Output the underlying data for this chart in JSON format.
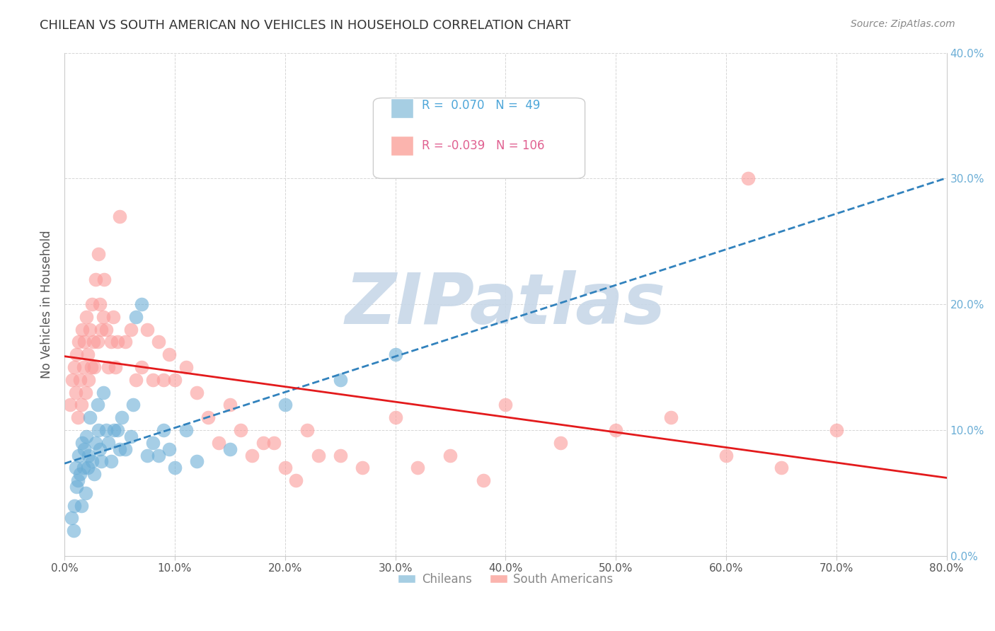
{
  "title": "CHILEAN VS SOUTH AMERICAN NO VEHICLES IN HOUSEHOLD CORRELATION CHART",
  "source": "Source: ZipAtlas.com",
  "ylabel": "No Vehicles in Household",
  "xlabel": "",
  "xlim": [
    0.0,
    0.8
  ],
  "ylim": [
    0.0,
    0.4
  ],
  "xticks": [
    0.0,
    0.1,
    0.2,
    0.3,
    0.4,
    0.5,
    0.6,
    0.7,
    0.8
  ],
  "yticks": [
    0.0,
    0.1,
    0.2,
    0.3,
    0.4
  ],
  "xticklabels": [
    "0.0%",
    "10.0%",
    "20.0%",
    "30.0%",
    "40.0%",
    "50.0%",
    "60.0%",
    "70.0%",
    "80.0%"
  ],
  "yticklabels_right": [
    "0.0%",
    "10.0%",
    "20.0%",
    "30.0%",
    "40.0%"
  ],
  "chilean_R": 0.07,
  "chilean_N": 49,
  "south_american_R": -0.039,
  "south_american_N": 106,
  "blue_color": "#6baed6",
  "pink_color": "#fb9a99",
  "blue_line_color": "#3182bd",
  "pink_line_color": "#e31a1c",
  "watermark": "ZIPatlas",
  "watermark_color": "#c8d8e8",
  "legend_box_blue": "#a6cee3",
  "legend_box_pink": "#fbb4ae",
  "chileans_label": "Chileans",
  "south_americans_label": "South Americans",
  "chilean_x": [
    0.006,
    0.008,
    0.009,
    0.01,
    0.011,
    0.012,
    0.013,
    0.014,
    0.015,
    0.016,
    0.017,
    0.018,
    0.019,
    0.02,
    0.021,
    0.022,
    0.023,
    0.025,
    0.027,
    0.028,
    0.03,
    0.031,
    0.032,
    0.033,
    0.035,
    0.038,
    0.04,
    0.042,
    0.045,
    0.048,
    0.05,
    0.052,
    0.055,
    0.06,
    0.062,
    0.065,
    0.07,
    0.075,
    0.08,
    0.085,
    0.09,
    0.095,
    0.1,
    0.11,
    0.12,
    0.15,
    0.2,
    0.25,
    0.3
  ],
  "chilean_y": [
    0.03,
    0.02,
    0.04,
    0.07,
    0.055,
    0.06,
    0.08,
    0.065,
    0.04,
    0.09,
    0.07,
    0.085,
    0.05,
    0.095,
    0.07,
    0.08,
    0.11,
    0.075,
    0.065,
    0.09,
    0.12,
    0.1,
    0.085,
    0.075,
    0.13,
    0.1,
    0.09,
    0.075,
    0.1,
    0.1,
    0.085,
    0.11,
    0.085,
    0.095,
    0.12,
    0.19,
    0.2,
    0.08,
    0.09,
    0.08,
    0.1,
    0.085,
    0.07,
    0.1,
    0.075,
    0.085,
    0.12,
    0.14,
    0.16
  ],
  "south_american_x": [
    0.005,
    0.007,
    0.009,
    0.01,
    0.011,
    0.012,
    0.013,
    0.014,
    0.015,
    0.016,
    0.017,
    0.018,
    0.019,
    0.02,
    0.021,
    0.022,
    0.023,
    0.024,
    0.025,
    0.026,
    0.027,
    0.028,
    0.03,
    0.031,
    0.032,
    0.033,
    0.035,
    0.036,
    0.038,
    0.04,
    0.042,
    0.044,
    0.046,
    0.048,
    0.05,
    0.055,
    0.06,
    0.065,
    0.07,
    0.075,
    0.08,
    0.085,
    0.09,
    0.095,
    0.1,
    0.11,
    0.12,
    0.13,
    0.14,
    0.15,
    0.16,
    0.17,
    0.18,
    0.19,
    0.2,
    0.21,
    0.22,
    0.23,
    0.25,
    0.27,
    0.3,
    0.32,
    0.35,
    0.38,
    0.4,
    0.45,
    0.5,
    0.55,
    0.6,
    0.62,
    0.65,
    0.7
  ],
  "south_american_y": [
    0.12,
    0.14,
    0.15,
    0.13,
    0.16,
    0.11,
    0.17,
    0.14,
    0.12,
    0.18,
    0.15,
    0.17,
    0.13,
    0.19,
    0.16,
    0.14,
    0.18,
    0.15,
    0.2,
    0.17,
    0.15,
    0.22,
    0.17,
    0.24,
    0.2,
    0.18,
    0.19,
    0.22,
    0.18,
    0.15,
    0.17,
    0.19,
    0.15,
    0.17,
    0.27,
    0.17,
    0.18,
    0.14,
    0.15,
    0.18,
    0.14,
    0.17,
    0.14,
    0.16,
    0.14,
    0.15,
    0.13,
    0.11,
    0.09,
    0.12,
    0.1,
    0.08,
    0.09,
    0.09,
    0.07,
    0.06,
    0.1,
    0.08,
    0.08,
    0.07,
    0.11,
    0.07,
    0.08,
    0.06,
    0.12,
    0.09,
    0.1,
    0.11,
    0.08,
    0.3,
    0.07,
    0.1
  ]
}
